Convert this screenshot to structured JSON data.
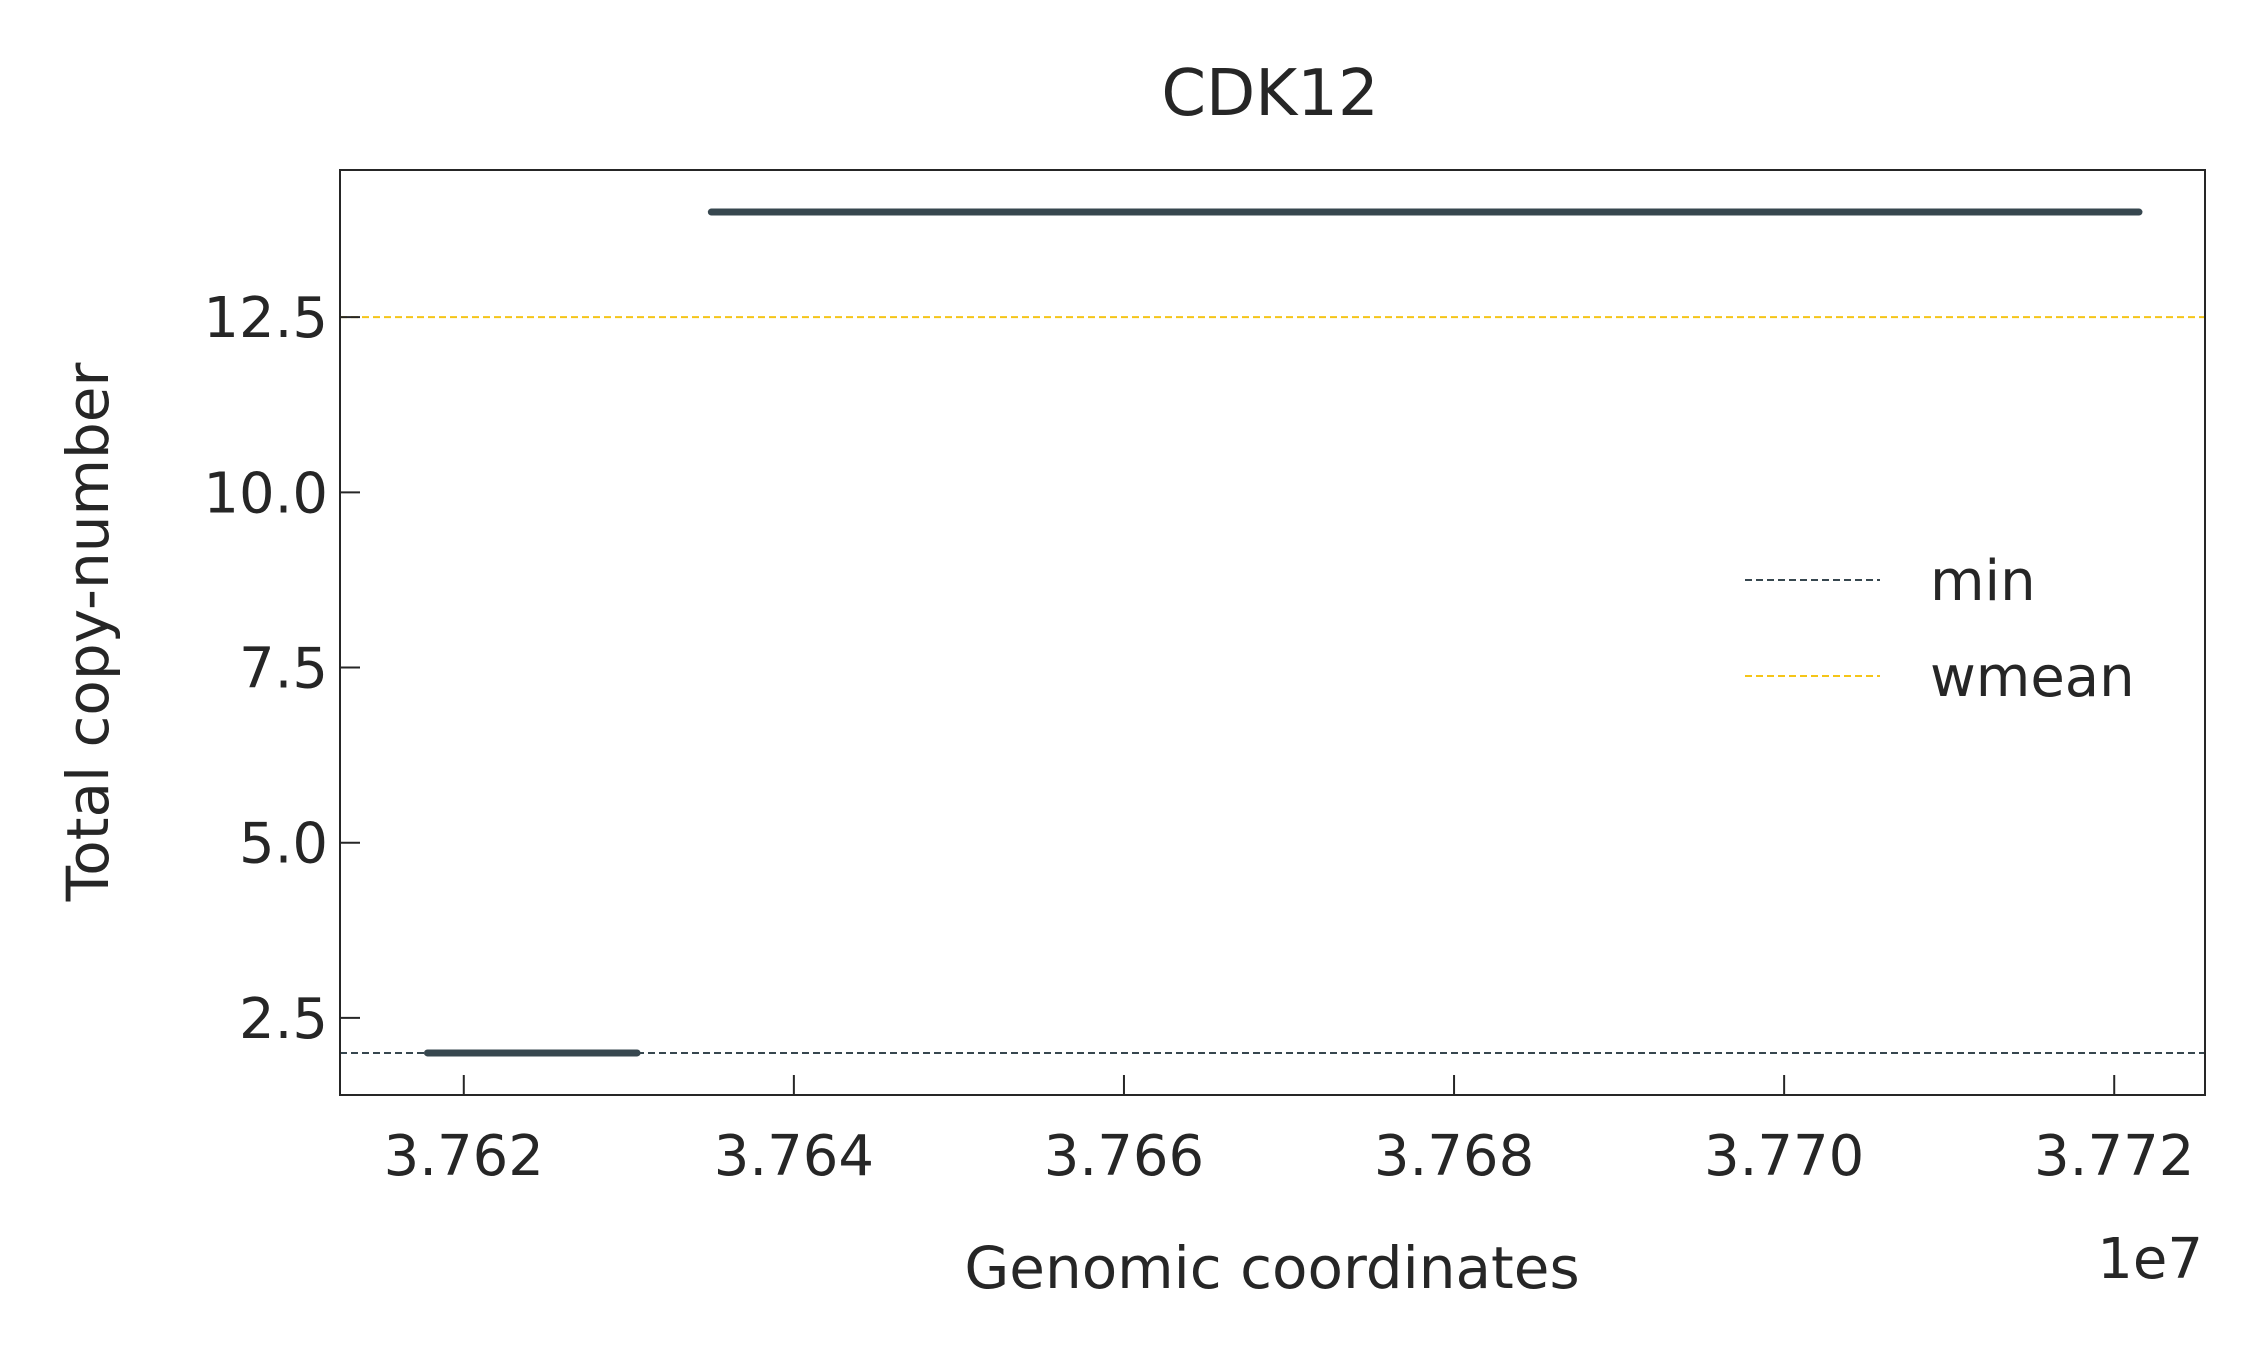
{
  "chart_data": {
    "type": "line",
    "title": "CDK12",
    "xlabel": "Genomic coordinates",
    "ylabel": "Total copy-number",
    "x_offset_label": "1e7",
    "xlim": [
      37612500,
      37725500
    ],
    "ylim": [
      1.4,
      14.6
    ],
    "x_ticks": [
      37620000,
      37640000,
      37660000,
      37680000,
      37700000,
      37720000
    ],
    "x_tick_labels": [
      "3.762",
      "3.764",
      "3.766",
      "3.768",
      "3.770",
      "3.772"
    ],
    "y_ticks": [
      2.5,
      5.0,
      7.5,
      10.0,
      12.5
    ],
    "y_tick_labels": [
      "2.5",
      "5.0",
      "7.5",
      "10.0",
      "12.5"
    ],
    "grid": false,
    "legend_position": "center-right",
    "segments": [
      {
        "x_start": 37617800,
        "x_end": 37630500,
        "value": 2.0
      },
      {
        "x_start": 37635000,
        "x_end": 37721500,
        "value": 14.0
      }
    ],
    "reference_lines": [
      {
        "name": "min",
        "value": 2.0,
        "color": "#37474f"
      },
      {
        "name": "wmean",
        "value": 12.5,
        "color": "#f5c518"
      }
    ],
    "segment_color": "#37474f"
  }
}
